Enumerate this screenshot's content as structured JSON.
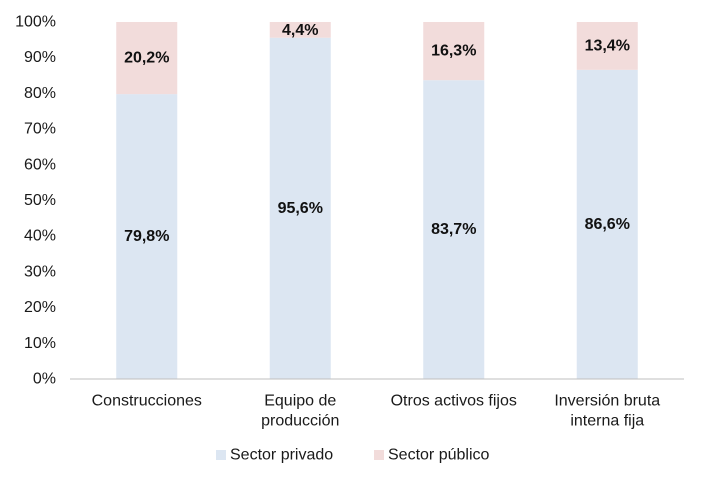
{
  "chart_data": {
    "type": "bar",
    "stacked": "percent",
    "categories": [
      [
        "Construcciones"
      ],
      [
        "Equipo de",
        "producción"
      ],
      [
        "Otros activos fijos"
      ],
      [
        "Inversión bruta",
        "interna fija"
      ]
    ],
    "series": [
      {
        "name": "Sector privado",
        "color": "#dce6f2",
        "values": [
          79.8,
          95.6,
          83.7,
          86.6
        ],
        "labels": [
          "79,8%",
          "95,6%",
          "83,7%",
          "86,6%"
        ]
      },
      {
        "name": "Sector público",
        "color": "#f2dcdb",
        "values": [
          20.2,
          4.4,
          16.3,
          13.4
        ],
        "labels": [
          "20,2%",
          "4,4%",
          "16,3%",
          "13,4%"
        ]
      }
    ],
    "ylim": [
      0,
      100
    ],
    "yticks": [
      "0%",
      "10%",
      "20%",
      "30%",
      "40%",
      "50%",
      "60%",
      "70%",
      "80%",
      "90%",
      "100%"
    ],
    "title": "",
    "xlabel": "",
    "ylabel": "",
    "legend": "bottom"
  }
}
